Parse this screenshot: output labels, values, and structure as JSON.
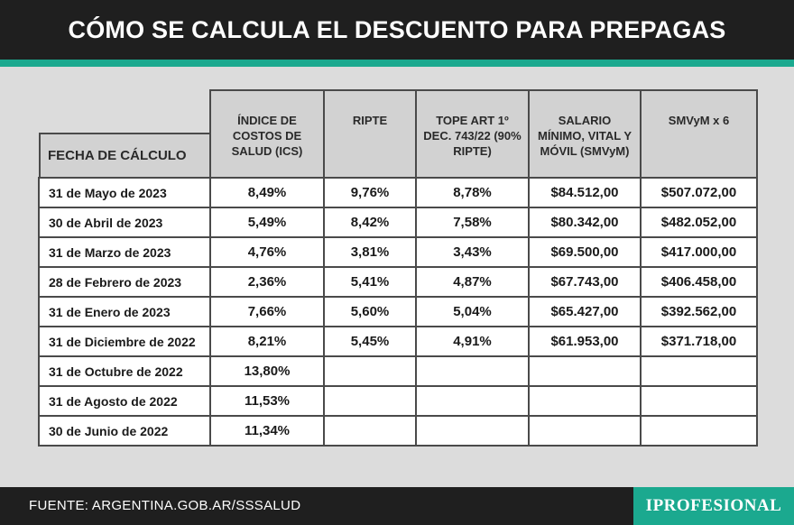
{
  "header": {
    "title": "CÓMO SE CALCULA EL DESCUENTO PARA PREPAGAS"
  },
  "colors": {
    "accent": "#1ba98f",
    "header_bg": "#1f1f1f",
    "page_bg": "#dcdcdc"
  },
  "table": {
    "headers": {
      "fecha": "FECHA DE CÁLCULO",
      "ics": "ÍNDICE DE COSTOS DE SALUD (ICS)",
      "ripte": "RIPTE",
      "tope": "TOPE ART 1º DEC. 743/22 (90% RIPTE)",
      "smvym": "SALARIO MÍNIMO, VITAL Y MÓVIL (SMVyM)",
      "smvym6": "SMVyM x 6"
    },
    "rows": [
      {
        "fecha": "31 de Mayo de 2023",
        "ics": "8,49%",
        "ripte": "9,76%",
        "tope": "8,78%",
        "smvym": "$84.512,00",
        "smvym6": "$507.072,00"
      },
      {
        "fecha": "30 de Abril de 2023",
        "ics": "5,49%",
        "ripte": "8,42%",
        "tope": "7,58%",
        "smvym": "$80.342,00",
        "smvym6": "$482.052,00"
      },
      {
        "fecha": "31 de Marzo de 2023",
        "ics": "4,76%",
        "ripte": "3,81%",
        "tope": "3,43%",
        "smvym": "$69.500,00",
        "smvym6": "$417.000,00"
      },
      {
        "fecha": "28 de Febrero de 2023",
        "ics": "2,36%",
        "ripte": "5,41%",
        "tope": "4,87%",
        "smvym": "$67.743,00",
        "smvym6": "$406.458,00"
      },
      {
        "fecha": "31 de Enero de 2023",
        "ics": "7,66%",
        "ripte": "5,60%",
        "tope": "5,04%",
        "smvym": "$65.427,00",
        "smvym6": "$392.562,00"
      },
      {
        "fecha": "31 de Diciembre de 2022",
        "ics": "8,21%",
        "ripte": "5,45%",
        "tope": "4,91%",
        "smvym": "$61.953,00",
        "smvym6": "$371.718,00"
      },
      {
        "fecha": "31 de Octubre de 2022",
        "ics": "13,80%",
        "ripte": "",
        "tope": "",
        "smvym": "",
        "smvym6": ""
      },
      {
        "fecha": "31 de Agosto de 2022",
        "ics": "11,53%",
        "ripte": "",
        "tope": "",
        "smvym": "",
        "smvym6": ""
      },
      {
        "fecha": "30 de Junio de 2022",
        "ics": "11,34%",
        "ripte": "",
        "tope": "",
        "smvym": "",
        "smvym6": ""
      }
    ]
  },
  "footer": {
    "source": "FUENTE: ARGENTINA.GOB.AR/SSSALUD",
    "logo": "IPROFESIONAL"
  }
}
